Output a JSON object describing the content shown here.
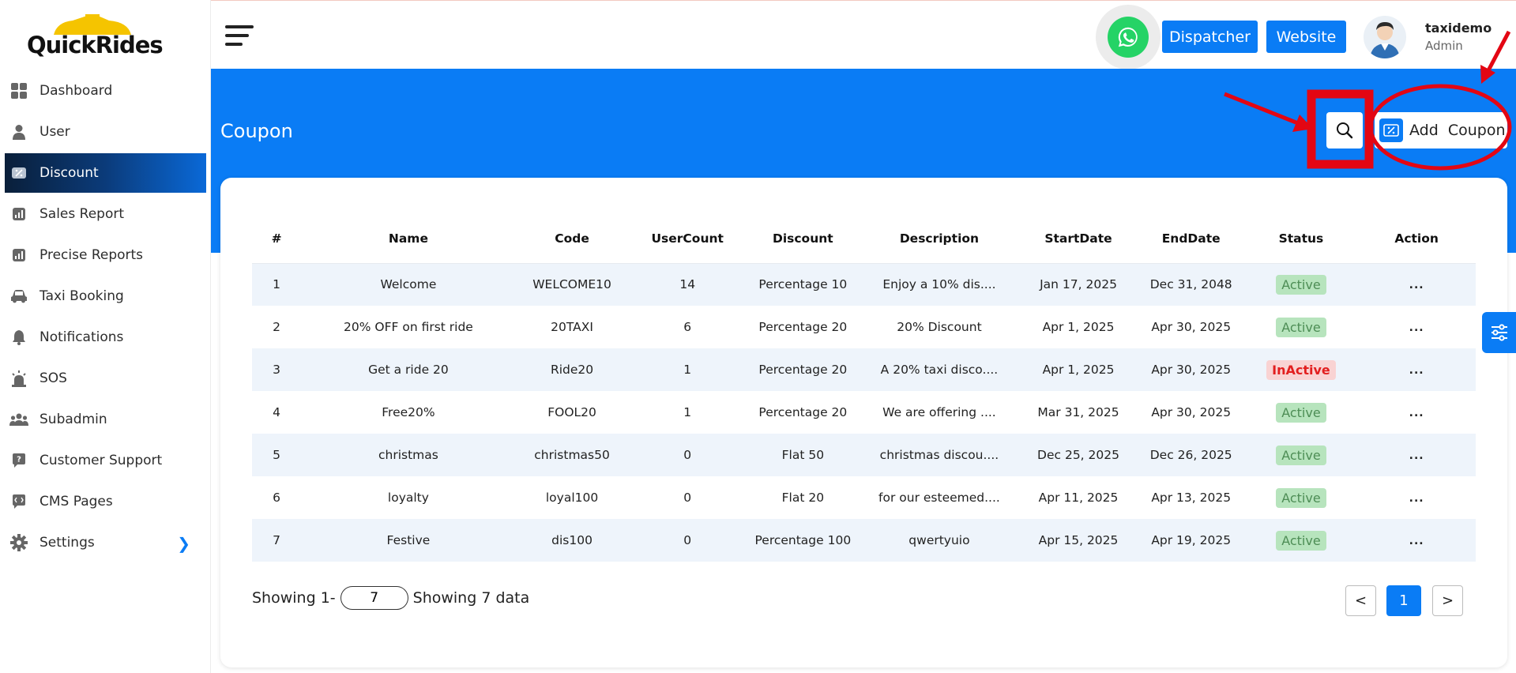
{
  "app": {
    "logo_text": "QuickRides"
  },
  "sidebar": {
    "items": [
      {
        "label": "Dashboard",
        "icon": "grid-icon",
        "active": false
      },
      {
        "label": "User",
        "icon": "user-icon",
        "active": false
      },
      {
        "label": "Discount",
        "icon": "discount-icon",
        "active": true
      },
      {
        "label": "Sales Report",
        "icon": "report-icon",
        "active": false
      },
      {
        "label": "Precise Reports",
        "icon": "report-icon",
        "active": false
      },
      {
        "label": "Taxi Booking",
        "icon": "car-icon",
        "active": false
      },
      {
        "label": "Notifications",
        "icon": "bell-icon",
        "active": false
      },
      {
        "label": "SOS",
        "icon": "siren-icon",
        "active": false
      },
      {
        "label": "Subadmin",
        "icon": "group-icon",
        "active": false
      },
      {
        "label": "Customer Support",
        "icon": "support-icon",
        "active": false
      },
      {
        "label": "CMS Pages",
        "icon": "code-icon",
        "active": false
      },
      {
        "label": "Settings",
        "icon": "gear-icon",
        "active": false
      }
    ]
  },
  "header": {
    "dispatcher_label": "Dispatcher",
    "website_label": "Website",
    "user_name": "taxidemo",
    "user_role": "Admin"
  },
  "page": {
    "title": "Coupon",
    "add_button_label": "Add  Coupon"
  },
  "table": {
    "columns": [
      "#",
      "Name",
      "Code",
      "UserCount",
      "Discount",
      "Description",
      "StartDate",
      "EndDate",
      "Status",
      "Action"
    ],
    "rows": [
      [
        "1",
        "Welcome",
        "WELCOME10",
        "14",
        "Percentage 10",
        "Enjoy a 10% dis....",
        "Jan 17, 2025",
        "Dec 31, 2048",
        "Active",
        "..."
      ],
      [
        "2",
        "20% OFF on first ride",
        "20TAXI",
        "6",
        "Percentage 20",
        "20% Discount",
        "Apr 1, 2025",
        "Apr 30, 2025",
        "Active",
        "..."
      ],
      [
        "3",
        "Get a ride 20",
        "Ride20",
        "1",
        "Percentage 20",
        "A 20% taxi disco....",
        "Apr 1, 2025",
        "Apr 30, 2025",
        "InActive",
        "..."
      ],
      [
        "4",
        "Free20%",
        "FOOL20",
        "1",
        "Percentage 20",
        "We are offering ....",
        "Mar 31, 2025",
        "Apr 30, 2025",
        "Active",
        "..."
      ],
      [
        "5",
        "christmas",
        "christmas50",
        "0",
        "Flat 50",
        "christmas discou....",
        "Dec 25, 2025",
        "Dec 26, 2025",
        "Active",
        "..."
      ],
      [
        "6",
        "loyalty",
        "loyal100",
        "0",
        "Flat 20",
        "for our esteemed....",
        "Apr 11, 2025",
        "Apr 13, 2025",
        "Active",
        "..."
      ],
      [
        "7",
        "Festive",
        "dis100",
        "0",
        "Percentage 100",
        "qwertyuio",
        "Apr 15, 2025",
        "Apr 19, 2025",
        "Active",
        "..."
      ]
    ]
  },
  "pagination": {
    "showing_prefix": "Showing 1-",
    "per_page_value": "7",
    "showing_suffix": "Showing 7 data",
    "prev": "<",
    "current": "1",
    "next": ">"
  },
  "colors": {
    "primary": "#0a7cf5",
    "active_badge_bg": "#b7e4bd",
    "inactive_badge_bg": "#f9d3d3",
    "annotation_red": "#e30613"
  }
}
